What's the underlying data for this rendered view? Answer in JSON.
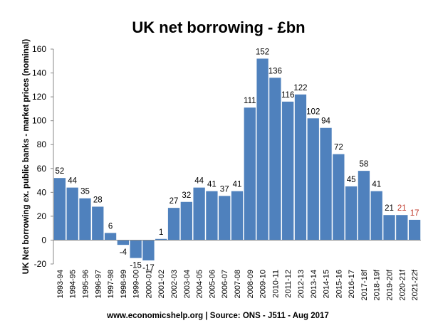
{
  "chart_data": {
    "type": "bar",
    "title": "UK net borrowing - £bn",
    "ylabel": "UK Net borrowing ex. public banks - market prices (nominal)",
    "xlabel": "",
    "ylim": [
      -20,
      160
    ],
    "yticks": [
      -20,
      0,
      20,
      40,
      60,
      80,
      100,
      120,
      140,
      160
    ],
    "grid": false,
    "bar_color": "#4F81BD",
    "categories": [
      "1993-94",
      "1994-95",
      "1995-96",
      "1996-97",
      "1997-98",
      "1998-99",
      "1999-00",
      "2000-01",
      "2001-02",
      "2002-03",
      "2003-04",
      "2004-05",
      "2005-06",
      "2006-07",
      "2007-08",
      "2008-09",
      "2009-10",
      "2010-11",
      "2011-12",
      "2012-13",
      "2013-14",
      "2014-15",
      "2015-16",
      "2016-17",
      "2017-18f",
      "2018-19f",
      "2019-20f",
      "2020-21f",
      "2021-22f"
    ],
    "values": [
      52,
      44,
      35,
      28,
      6,
      -4,
      -15,
      -17,
      1,
      27,
      32,
      44,
      41,
      37,
      41,
      111,
      152,
      136,
      116,
      122,
      102,
      94,
      72,
      45,
      58,
      41,
      21,
      21,
      17
    ],
    "data_labels": [
      "52",
      "44",
      "35",
      "28",
      "6",
      "-4",
      "-15",
      "-17",
      "1",
      "27",
      "32",
      "44",
      "41",
      "37",
      "41",
      "111",
      "152",
      "136",
      "116",
      "122",
      "102",
      "94",
      "72",
      "45",
      "58",
      "41",
      "21",
      "21",
      "17"
    ],
    "highlight_label_indices": [
      27,
      28
    ],
    "label_color": "#000000",
    "highlight_label_color": "#C0392B",
    "source": "www.economicshelp.org | Source: ONS - J511 - Aug 2017"
  }
}
